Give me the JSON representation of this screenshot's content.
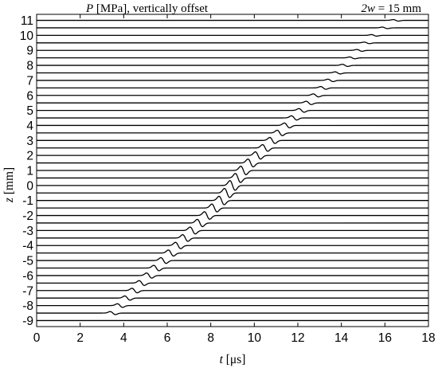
{
  "chart_data": {
    "type": "line",
    "annotation_left_var": "P",
    "annotation_left_rest": " [MPa], vertically offset",
    "annotation_right_var": "2w",
    "annotation_right_rest": " = 15 mm",
    "xlabel_var": "t",
    "xlabel_unit": " [μs]",
    "ylabel_var": "z",
    "ylabel_unit": " [mm]",
    "xlim": [
      0,
      18
    ],
    "ylim": [
      -9.4,
      11.4
    ],
    "x_ticks": [
      0,
      2,
      4,
      6,
      8,
      10,
      12,
      14,
      16,
      18
    ],
    "x_tick_labels": [
      "0",
      "2",
      "4",
      "6",
      "8",
      "10",
      "12",
      "14",
      "16",
      "18"
    ],
    "y_ticks": [
      -9,
      -8,
      -7,
      -6,
      -5,
      -4,
      -3,
      -2,
      -1,
      0,
      1,
      2,
      3,
      4,
      5,
      6,
      7,
      8,
      9,
      10,
      11
    ],
    "y_tick_labels": [
      "-9",
      "-8",
      "-7",
      "-6",
      "-5",
      "-4",
      "-3",
      "-2",
      "-1",
      "0",
      "1",
      "2",
      "3",
      "4",
      "5",
      "6",
      "7",
      "8",
      "9",
      "10",
      "11"
    ],
    "trace_spacing_mm": 0.5,
    "trace_offsets": [
      -9,
      -8.5,
      -8,
      -7.5,
      -7,
      -6.5,
      -6,
      -5.5,
      -5,
      -4.5,
      -4,
      -3.5,
      -3,
      -2.5,
      -2,
      -1.5,
      -1,
      -0.5,
      0,
      0.5,
      1,
      1.5,
      2,
      2.5,
      3,
      3.5,
      4,
      4.5,
      5,
      5.5,
      6,
      6.5,
      7,
      7.5,
      8,
      8.5,
      9,
      9.5,
      10,
      10.5,
      11
    ],
    "pulse_arrival_us": [
      null,
      3.5,
      3.83,
      4.17,
      4.5,
      4.83,
      5.17,
      5.5,
      5.83,
      6.17,
      6.5,
      6.83,
      7.17,
      7.5,
      7.83,
      8.17,
      8.5,
      8.75,
      9.0,
      9.25,
      9.5,
      9.83,
      10.17,
      10.5,
      10.83,
      11.17,
      11.5,
      11.83,
      12.17,
      12.5,
      12.83,
      13.17,
      13.5,
      13.83,
      14.17,
      14.5,
      14.83,
      15.17,
      15.5,
      16.0,
      16.5
    ],
    "pulse_amplitude_mm": [
      0,
      0.1,
      0.12,
      0.14,
      0.15,
      0.16,
      0.17,
      0.18,
      0.19,
      0.2,
      0.21,
      0.22,
      0.23,
      0.24,
      0.25,
      0.26,
      0.28,
      0.3,
      0.32,
      0.3,
      0.28,
      0.26,
      0.24,
      0.22,
      0.2,
      0.18,
      0.16,
      0.14,
      0.12,
      0.11,
      0.1,
      0.09,
      0.08,
      0.07,
      0.07,
      0.06,
      0.06,
      0.05,
      0.05,
      0.05,
      0.05
    ],
    "line_color": "#000000",
    "grid": false
  }
}
